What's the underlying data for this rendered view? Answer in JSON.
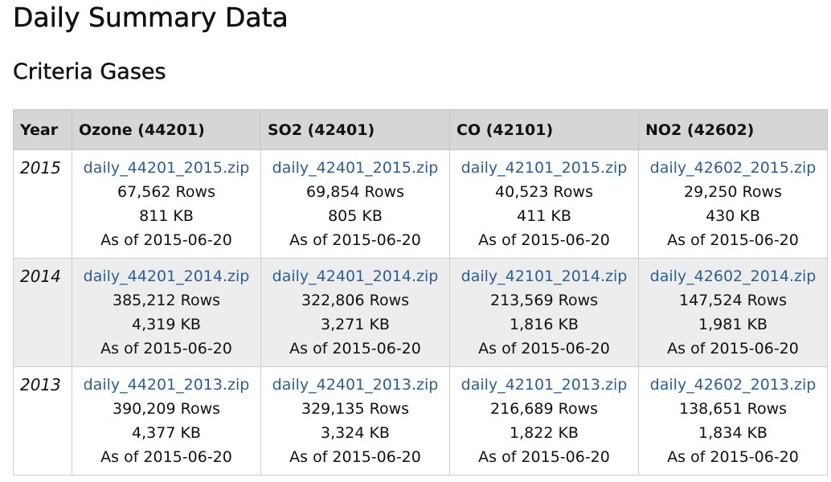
{
  "page": {
    "title": "Daily Summary Data",
    "section": "Criteria Gases"
  },
  "table": {
    "headers": [
      "Year",
      "Ozone (44201)",
      "SO2 (42401)",
      "CO (42101)",
      "NO2 (42602)"
    ],
    "rows": [
      {
        "year": "2015",
        "cells": [
          {
            "file": "daily_44201_2015.zip",
            "rows": "67,562 Rows",
            "size": "811 KB",
            "asof": "As of 2015-06-20"
          },
          {
            "file": "daily_42401_2015.zip",
            "rows": "69,854 Rows",
            "size": "805 KB",
            "asof": "As of 2015-06-20"
          },
          {
            "file": "daily_42101_2015.zip",
            "rows": "40,523 Rows",
            "size": "411 KB",
            "asof": "As of 2015-06-20"
          },
          {
            "file": "daily_42602_2015.zip",
            "rows": "29,250 Rows",
            "size": "430 KB",
            "asof": "As of 2015-06-20"
          }
        ]
      },
      {
        "year": "2014",
        "cells": [
          {
            "file": "daily_44201_2014.zip",
            "rows": "385,212 Rows",
            "size": "4,319 KB",
            "asof": "As of 2015-06-20"
          },
          {
            "file": "daily_42401_2014.zip",
            "rows": "322,806 Rows",
            "size": "3,271 KB",
            "asof": "As of 2015-06-20"
          },
          {
            "file": "daily_42101_2014.zip",
            "rows": "213,569 Rows",
            "size": "1,816 KB",
            "asof": "As of 2015-06-20"
          },
          {
            "file": "daily_42602_2014.zip",
            "rows": "147,524 Rows",
            "size": "1,981 KB",
            "asof": "As of 2015-06-20"
          }
        ]
      },
      {
        "year": "2013",
        "cells": [
          {
            "file": "daily_44201_2013.zip",
            "rows": "390,209 Rows",
            "size": "4,377 KB",
            "asof": "As of 2015-06-20"
          },
          {
            "file": "daily_42401_2013.zip",
            "rows": "329,135 Rows",
            "size": "3,324 KB",
            "asof": "As of 2015-06-20"
          },
          {
            "file": "daily_42101_2013.zip",
            "rows": "216,689 Rows",
            "size": "1,822 KB",
            "asof": "As of 2015-06-20"
          },
          {
            "file": "daily_42602_2013.zip",
            "rows": "138,651 Rows",
            "size": "1,834 KB",
            "asof": "As of 2015-06-20"
          }
        ]
      }
    ]
  },
  "colors": {
    "link": "#2b5f99",
    "header_bg": "#d6d6d6",
    "alt_row_bg": "#ededed"
  }
}
